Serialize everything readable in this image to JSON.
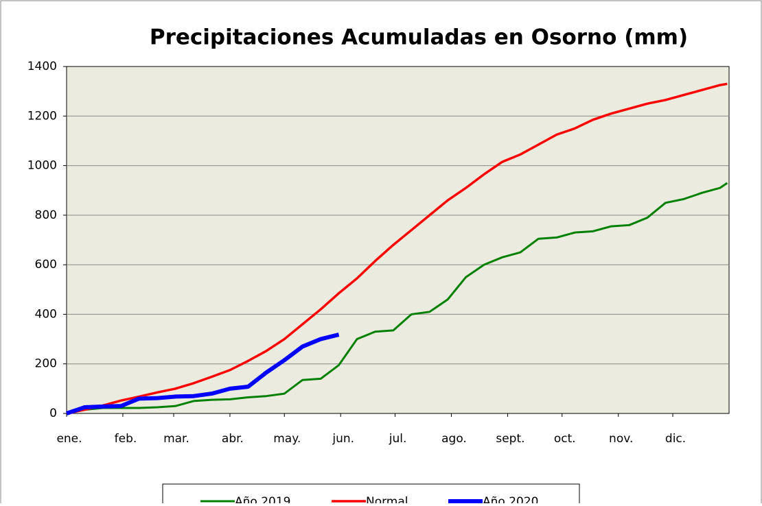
{
  "chart_data": {
    "type": "line",
    "title": "Precipitaciones Acumuladas en Osorno (mm)",
    "x": [
      0,
      10,
      20,
      30,
      40,
      50,
      60,
      70,
      80,
      90,
      100,
      110,
      120,
      130,
      140,
      150,
      160,
      170,
      180,
      190,
      200,
      210,
      220,
      230,
      240,
      250,
      260,
      270,
      280,
      290,
      300,
      310,
      320,
      330,
      340,
      350,
      360,
      364
    ],
    "series": [
      {
        "name": "Año 2019",
        "color": "#008000",
        "width": 3,
        "values": [
          0,
          15,
          22,
          22,
          22,
          25,
          30,
          50,
          55,
          57,
          65,
          70,
          80,
          135,
          140,
          195,
          300,
          330,
          335,
          400,
          410,
          460,
          550,
          600,
          630,
          650,
          705,
          710,
          730,
          735,
          755,
          760,
          790,
          850,
          865,
          890,
          910,
          930
        ]
      },
      {
        "name": "Normal",
        "color": "#ff0000",
        "width": 3.5,
        "values": [
          0,
          15,
          32,
          52,
          68,
          85,
          100,
          122,
          148,
          175,
          212,
          252,
          300,
          360,
          420,
          485,
          545,
          615,
          680,
          740,
          800,
          860,
          910,
          965,
          1015,
          1045,
          1085,
          1125,
          1150,
          1185,
          1210,
          1230,
          1250,
          1265,
          1285,
          1305,
          1325,
          1330
        ]
      },
      {
        "name": "Año 2020",
        "color": "#0000ff",
        "width": 6,
        "values": [
          0,
          25,
          28,
          30,
          60,
          62,
          68,
          70,
          80,
          100,
          108,
          165,
          215,
          270,
          300,
          318,
          null,
          null,
          null,
          null,
          null,
          null,
          null,
          null,
          null,
          null,
          null,
          null,
          null,
          null,
          null,
          null,
          null,
          null,
          null,
          null,
          null,
          null
        ]
      }
    ],
    "xlim": [
      0,
      365
    ],
    "xticks": [
      {
        "value": 0,
        "label": "ene."
      },
      {
        "value": 31,
        "label": "feb."
      },
      {
        "value": 59,
        "label": "mar."
      },
      {
        "value": 90,
        "label": "abr."
      },
      {
        "value": 120,
        "label": "may."
      },
      {
        "value": 151,
        "label": "jun."
      },
      {
        "value": 181,
        "label": "jul."
      },
      {
        "value": 212,
        "label": "ago."
      },
      {
        "value": 243,
        "label": "sept."
      },
      {
        "value": 273,
        "label": "oct."
      },
      {
        "value": 304,
        "label": "nov."
      },
      {
        "value": 334,
        "label": "dic."
      }
    ],
    "ylim": [
      0,
      1400
    ],
    "yticks": [
      0,
      200,
      400,
      600,
      800,
      1000,
      1200,
      1400
    ],
    "grid": true,
    "legend": "bottom"
  }
}
